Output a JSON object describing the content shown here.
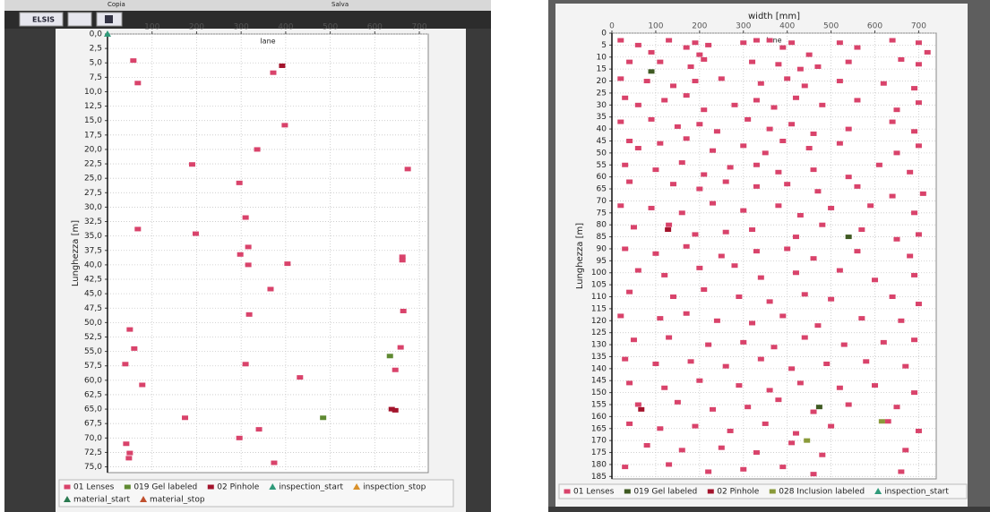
{
  "toolbar": {
    "buttons": [
      "Copia",
      "Salva",
      "ELSIS"
    ]
  },
  "chart_data": [
    {
      "type": "scatter",
      "x_label": "lane",
      "y_label": "Lunghezza [m]",
      "y_inverted": true,
      "grid": true,
      "xlim": [
        0,
        720
      ],
      "ylim": [
        0,
        76
      ],
      "xticks": [
        100,
        200,
        300,
        400,
        500,
        600,
        700
      ],
      "yticks": [
        {
          "value": 0,
          "label": "0,0"
        },
        {
          "value": 2.5,
          "label": "2,5"
        },
        {
          "value": 5,
          "label": "5,0"
        },
        {
          "value": 7.5,
          "label": "7,5"
        },
        {
          "value": 10,
          "label": "10,0"
        },
        {
          "value": 12.5,
          "label": "12,5"
        },
        {
          "value": 15,
          "label": "15,0"
        },
        {
          "value": 17.5,
          "label": "17,5"
        },
        {
          "value": 20,
          "label": "20,0"
        },
        {
          "value": 22.5,
          "label": "22,5"
        },
        {
          "value": 25,
          "label": "25,0"
        },
        {
          "value": 27.5,
          "label": "27,5"
        },
        {
          "value": 30,
          "label": "30,0"
        },
        {
          "value": 32.5,
          "label": "32,5"
        },
        {
          "value": 35,
          "label": "35,0"
        },
        {
          "value": 37.5,
          "label": "37,5"
        },
        {
          "value": 40,
          "label": "40,0"
        },
        {
          "value": 42.5,
          "label": "42,5"
        },
        {
          "value": 45,
          "label": "45,0"
        },
        {
          "value": 47.5,
          "label": "47,5"
        },
        {
          "value": 50,
          "label": "50,0"
        },
        {
          "value": 52.5,
          "label": "52,5"
        },
        {
          "value": 55,
          "label": "55,0"
        },
        {
          "value": 57.5,
          "label": "57,5"
        },
        {
          "value": 60,
          "label": "60,0"
        },
        {
          "value": 62.5,
          "label": "62,5"
        },
        {
          "value": 65,
          "label": "65,0"
        },
        {
          "value": 67.5,
          "label": "67,5"
        },
        {
          "value": 70,
          "label": "70,0"
        },
        {
          "value": 72.5,
          "label": "72,5"
        },
        {
          "value": 75,
          "label": "75,0"
        }
      ],
      "series": [
        {
          "name": "01 Lenses",
          "color": "#d9436b",
          "marker": "square",
          "x": [
            58,
            372,
            68,
            398,
            336,
            190,
            674,
            296,
            310,
            68,
            198,
            316,
            298,
            316,
            404,
            662,
            662,
            366,
            318,
            664,
            50,
            60,
            658,
            40,
            310,
            646,
            432,
            78,
            174,
            340,
            296,
            42,
            50,
            48,
            374
          ],
          "values": [
            4.6,
            6.7,
            8.5,
            15.8,
            20,
            22.6,
            23.4,
            25.8,
            31.8,
            33.8,
            34.6,
            36.9,
            38.2,
            40,
            39.8,
            38.6,
            39.2,
            44.2,
            48.6,
            48,
            51.2,
            54.5,
            54.3,
            57.2,
            57.2,
            58.2,
            59.5,
            60.8,
            66.5,
            68.5,
            70,
            71,
            72.6,
            73.5,
            74.3
          ]
        },
        {
          "name": "019 Gel labeled",
          "color": "#5f8a32",
          "marker": "square",
          "x": [
            634,
            484
          ],
          "values": [
            55.8,
            66.5
          ]
        },
        {
          "name": "02 Pinhole",
          "color": "#a3142c",
          "marker": "square",
          "x": [
            392,
            638,
            646
          ],
          "values": [
            5.5,
            65,
            65.2
          ]
        },
        {
          "name": "inspection_start",
          "color": "#2f9a7a",
          "marker": "triangle",
          "x": [
            0
          ],
          "values": [
            0
          ]
        },
        {
          "name": "inspection_stop",
          "color": "#d9902a",
          "marker": "triangle",
          "x": [],
          "values": []
        },
        {
          "name": "material_start",
          "color": "#2a7a50",
          "marker": "triangle",
          "x": [],
          "values": []
        },
        {
          "name": "material_stop",
          "color": "#c0502e",
          "marker": "triangle",
          "x": [],
          "values": []
        }
      ]
    },
    {
      "type": "scatter",
      "x_title": "width [mm]",
      "x_label": "lane",
      "y_label": "Lunghezza [m]",
      "y_inverted": true,
      "grid": true,
      "xlim": [
        0,
        740
      ],
      "ylim": [
        0,
        186
      ],
      "xticks": [
        0,
        100,
        200,
        300,
        400,
        500,
        600,
        700
      ],
      "yticks": [
        0,
        5,
        10,
        15,
        20,
        25,
        30,
        35,
        40,
        45,
        50,
        55,
        60,
        65,
        70,
        75,
        80,
        85,
        90,
        95,
        100,
        105,
        110,
        115,
        120,
        125,
        130,
        135,
        140,
        145,
        150,
        155,
        160,
        165,
        170,
        175,
        180,
        185
      ],
      "series": [
        {
          "name": "01 Lenses",
          "color": "#d9436b",
          "marker": "square",
          "x": [
            20,
            60,
            90,
            130,
            170,
            190,
            200,
            220,
            300,
            330,
            360,
            390,
            410,
            450,
            520,
            560,
            640,
            700,
            720,
            40,
            110,
            180,
            210,
            320,
            380,
            430,
            470,
            540,
            660,
            700,
            20,
            80,
            140,
            190,
            250,
            340,
            400,
            440,
            520,
            620,
            690,
            30,
            60,
            120,
            170,
            210,
            280,
            330,
            370,
            420,
            480,
            560,
            650,
            700,
            20,
            90,
            150,
            200,
            240,
            310,
            360,
            410,
            460,
            540,
            640,
            690,
            40,
            60,
            110,
            170,
            230,
            300,
            350,
            390,
            450,
            520,
            650,
            700,
            30,
            100,
            160,
            210,
            270,
            330,
            380,
            460,
            540,
            610,
            680,
            40,
            140,
            200,
            260,
            330,
            400,
            470,
            560,
            640,
            710,
            20,
            90,
            160,
            230,
            300,
            380,
            430,
            500,
            590,
            690,
            50,
            130,
            190,
            260,
            320,
            420,
            480,
            570,
            650,
            700,
            30,
            100,
            170,
            250,
            330,
            400,
            460,
            560,
            680,
            60,
            120,
            200,
            280,
            340,
            420,
            520,
            600,
            690,
            40,
            140,
            210,
            290,
            360,
            440,
            500,
            640,
            700,
            20,
            110,
            170,
            240,
            320,
            390,
            470,
            570,
            660,
            50,
            130,
            220,
            300,
            370,
            440,
            530,
            620,
            690,
            30,
            100,
            180,
            260,
            340,
            410,
            490,
            580,
            670,
            40,
            120,
            200,
            290,
            360,
            430,
            520,
            600,
            690,
            60,
            150,
            230,
            310,
            380,
            460,
            540,
            650,
            40,
            110,
            190,
            270,
            350,
            420,
            500,
            630,
            700,
            80,
            160,
            250,
            330,
            410,
            480,
            670,
            30,
            130,
            220,
            300,
            390,
            460,
            660
          ],
          "values": [
            3,
            5,
            8,
            3,
            6,
            4,
            9,
            5,
            4,
            3,
            3,
            6,
            4,
            9,
            4,
            6,
            3,
            4,
            8,
            12,
            12,
            14,
            11,
            12,
            13,
            15,
            14,
            12,
            11,
            13,
            19,
            20,
            22,
            20,
            19,
            21,
            19,
            22,
            20,
            21,
            23,
            27,
            30,
            28,
            26,
            32,
            30,
            28,
            31,
            27,
            30,
            28,
            32,
            29,
            37,
            36,
            39,
            38,
            41,
            36,
            40,
            38,
            42,
            40,
            37,
            41,
            45,
            48,
            46,
            44,
            49,
            47,
            50,
            45,
            48,
            46,
            50,
            47,
            55,
            57,
            54,
            59,
            56,
            55,
            58,
            57,
            60,
            55,
            58,
            62,
            63,
            65,
            62,
            64,
            63,
            66,
            64,
            68,
            67,
            72,
            73,
            75,
            71,
            74,
            72,
            76,
            73,
            72,
            75,
            81,
            80,
            84,
            83,
            82,
            85,
            80,
            82,
            86,
            84,
            90,
            92,
            89,
            93,
            91,
            90,
            94,
            91,
            93,
            99,
            101,
            98,
            97,
            102,
            100,
            99,
            103,
            101,
            108,
            110,
            107,
            110,
            112,
            109,
            111,
            110,
            113,
            118,
            119,
            117,
            120,
            121,
            118,
            122,
            119,
            120,
            128,
            127,
            130,
            129,
            131,
            127,
            130,
            129,
            128,
            136,
            138,
            137,
            139,
            136,
            140,
            138,
            137,
            139,
            146,
            148,
            145,
            147,
            149,
            146,
            148,
            147,
            150,
            155,
            154,
            157,
            156,
            153,
            158,
            155,
            156,
            163,
            165,
            164,
            166,
            163,
            167,
            164,
            162,
            166,
            172,
            174,
            173,
            175,
            171,
            176,
            174,
            181,
            180,
            183,
            182,
            181,
            184,
            183
          ]
        },
        {
          "name": "019 Gel labeled",
          "color": "#3f5a22",
          "marker": "square",
          "x": [
            90,
            540,
            473
          ],
          "values": [
            16,
            85,
            156
          ]
        },
        {
          "name": "02 Pinhole",
          "color": "#a3142c",
          "marker": "square",
          "x": [
            128,
            67
          ],
          "values": [
            82,
            157
          ]
        },
        {
          "name": "028 Inclusion labeled",
          "color": "#8a9a3a",
          "marker": "square",
          "x": [
            616,
            445
          ],
          "values": [
            162,
            170
          ]
        },
        {
          "name": "inspection_start",
          "color": "#2f9a7a",
          "marker": "triangle",
          "x": [],
          "values": []
        }
      ]
    }
  ]
}
